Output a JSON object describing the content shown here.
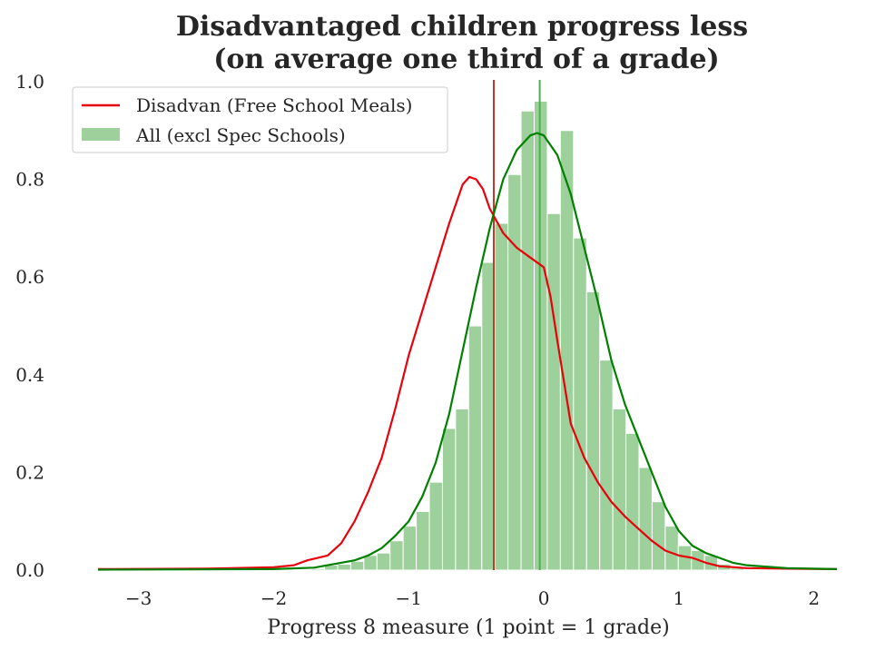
{
  "chart_data": {
    "type": "bar",
    "title": "Disadvantaged children progress less",
    "subtitle": "(on average one third of a grade)",
    "xlabel": "Progress 8 measure (1 point = 1 grade)",
    "ylabel": "",
    "xlim": [
      -3.3,
      2.17
    ],
    "ylim": [
      0,
      1.0
    ],
    "xticks": [
      -3,
      -2,
      -1,
      0,
      1,
      2
    ],
    "xtick_labels": [
      "−3",
      "−2",
      "−1",
      "0",
      "1",
      "2"
    ],
    "yticks": [
      0.0,
      0.2,
      0.4,
      0.6,
      0.8,
      1.0
    ],
    "ytick_labels": [
      "0.0",
      "0.2",
      "0.4",
      "0.6",
      "0.8",
      "1.0"
    ],
    "grid": false,
    "legend_position": "top-left",
    "histogram": {
      "name": "All (excl Spec Schools)",
      "color": "#9dd09b",
      "bin_width": 0.097,
      "bin_starts": [
        -1.72,
        -1.623,
        -1.526,
        -1.429,
        -1.332,
        -1.235,
        -1.138,
        -1.041,
        -0.944,
        -0.847,
        -0.75,
        -0.653,
        -0.556,
        -0.459,
        -0.362,
        -0.265,
        -0.168,
        -0.071,
        0.026,
        0.123,
        0.22,
        0.317,
        0.414,
        0.511,
        0.608,
        0.705,
        0.802,
        0.899,
        0.996,
        1.093,
        1.19,
        1.287,
        1.384
      ],
      "densities": [
        0.003,
        0.01,
        0.012,
        0.018,
        0.03,
        0.035,
        0.06,
        0.09,
        0.12,
        0.18,
        0.29,
        0.33,
        0.5,
        0.63,
        0.71,
        0.81,
        0.94,
        0.96,
        0.73,
        0.9,
        0.68,
        0.57,
        0.43,
        0.33,
        0.28,
        0.21,
        0.14,
        0.09,
        0.05,
        0.04,
        0.03,
        0.012,
        0.004
      ]
    },
    "series": [
      {
        "name": "Disadvan (Free School Meals)",
        "color": "#e8000b",
        "x": [
          -3.3,
          -2.5,
          -2.0,
          -1.85,
          -1.75,
          -1.6,
          -1.5,
          -1.4,
          -1.3,
          -1.2,
          -1.1,
          -1.0,
          -0.9,
          -0.8,
          -0.7,
          -0.6,
          -0.55,
          -0.5,
          -0.45,
          -0.4,
          -0.3,
          -0.2,
          -0.1,
          0.0,
          0.05,
          0.1,
          0.2,
          0.3,
          0.4,
          0.5,
          0.6,
          0.7,
          0.8,
          0.9,
          1.0,
          1.1,
          1.2,
          1.3,
          1.5,
          1.8,
          2.17
        ],
        "y": [
          0.002,
          0.003,
          0.006,
          0.01,
          0.02,
          0.03,
          0.055,
          0.1,
          0.16,
          0.23,
          0.33,
          0.44,
          0.53,
          0.62,
          0.71,
          0.79,
          0.805,
          0.8,
          0.78,
          0.74,
          0.69,
          0.66,
          0.64,
          0.62,
          0.56,
          0.47,
          0.3,
          0.23,
          0.18,
          0.14,
          0.11,
          0.085,
          0.06,
          0.04,
          0.03,
          0.025,
          0.015,
          0.008,
          0.004,
          0.003,
          0.002
        ]
      },
      {
        "name": "",
        "color": "#008000",
        "x": [
          -3.3,
          -2.0,
          -1.7,
          -1.6,
          -1.5,
          -1.4,
          -1.3,
          -1.2,
          -1.1,
          -1.0,
          -0.9,
          -0.8,
          -0.7,
          -0.6,
          -0.5,
          -0.4,
          -0.3,
          -0.2,
          -0.1,
          -0.05,
          0.0,
          0.1,
          0.2,
          0.3,
          0.4,
          0.5,
          0.6,
          0.7,
          0.8,
          0.9,
          1.0,
          1.1,
          1.2,
          1.3,
          1.4,
          1.5,
          1.8,
          2.17
        ],
        "y": [
          0.001,
          0.002,
          0.005,
          0.01,
          0.015,
          0.02,
          0.03,
          0.045,
          0.07,
          0.1,
          0.15,
          0.22,
          0.32,
          0.45,
          0.58,
          0.7,
          0.8,
          0.86,
          0.89,
          0.895,
          0.89,
          0.85,
          0.77,
          0.66,
          0.55,
          0.43,
          0.34,
          0.27,
          0.2,
          0.13,
          0.08,
          0.05,
          0.035,
          0.025,
          0.015,
          0.01,
          0.004,
          0.002
        ]
      }
    ],
    "vlines": [
      {
        "x": -0.37,
        "color": "#c0392b"
      },
      {
        "x": -0.03,
        "color": "#4caf50"
      }
    ]
  }
}
